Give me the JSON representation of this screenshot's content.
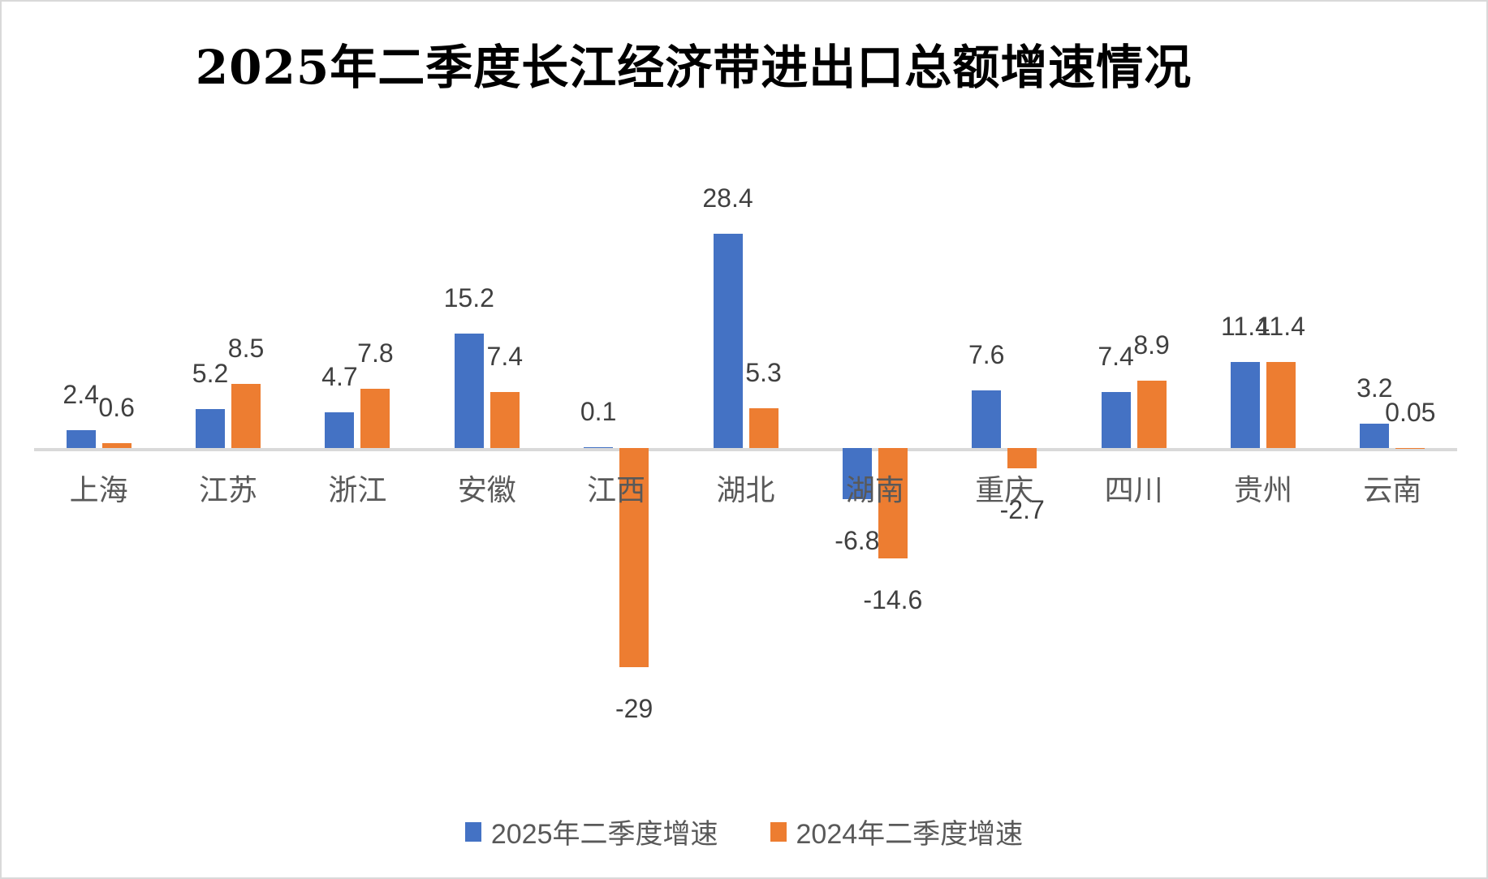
{
  "title": "2025年二季度长江经济带进出口总额增速情况",
  "colors": {
    "series_2025": "#4472C4",
    "series_2024": "#ED7D31",
    "axis_line": "#D9D9D9",
    "data_label_text": "#404040",
    "category_label_text": "#595959",
    "legend_text": "#595959",
    "title_text": "#000000"
  },
  "legend": {
    "items": [
      {
        "label": "2025年二季度增速",
        "color": "#4472C4"
      },
      {
        "label": "2024年二季度增速",
        "color": "#ED7D31"
      }
    ]
  },
  "chart_data": {
    "type": "bar",
    "title": "2025年二季度长江经济带进出口总额增速情况",
    "xlabel": "",
    "ylabel": "",
    "categories": [
      "上海",
      "江苏",
      "浙江",
      "安徽",
      "江西",
      "湖北",
      "湖南",
      "重庆",
      "四川",
      "贵州",
      "云南"
    ],
    "series": [
      {
        "name": "2025年二季度增速",
        "color": "#4472C4",
        "values": [
          2.4,
          5.2,
          4.7,
          15.2,
          0.1,
          28.4,
          -6.8,
          7.6,
          7.4,
          11.4,
          3.2
        ],
        "labels": [
          "2.4",
          "5.2",
          "4.7",
          "15.2",
          "0.1",
          "28.4",
          "-6.8",
          "7.6",
          "7.4",
          "11.4",
          "3.2"
        ]
      },
      {
        "name": "2024年二季度增速",
        "color": "#ED7D31",
        "values": [
          0.6,
          8.5,
          7.8,
          7.4,
          -29,
          5.3,
          -14.6,
          -2.7,
          8.9,
          11.4,
          0.05
        ],
        "labels": [
          "0.6",
          "8.5",
          "7.8",
          "7.4",
          "-29",
          "5.3",
          "-14.6",
          "-2.7",
          "8.9",
          "11.4",
          "0.05"
        ]
      }
    ],
    "ylim": [
      -29,
      28.4
    ],
    "grid": false,
    "y_axis_visible": false,
    "data_labels": true,
    "legend_position": "bottom"
  }
}
